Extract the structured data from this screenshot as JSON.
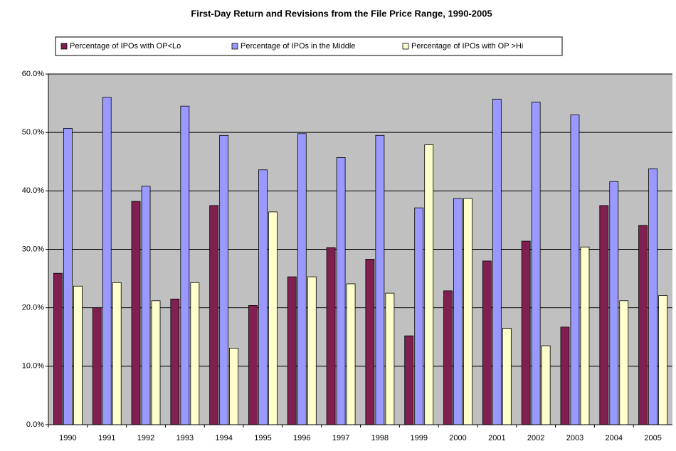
{
  "chart_data": {
    "type": "bar",
    "title": "First-Day Return and Revisions from the File Price Range, 1990-2005",
    "categories": [
      "1990",
      "1991",
      "1992",
      "1993",
      "1994",
      "1995",
      "1996",
      "1997",
      "1998",
      "1999",
      "2000",
      "2001",
      "2002",
      "2003",
      "2004",
      "2005"
    ],
    "series": [
      {
        "name": "Percentage of IPOs with OP<Lo",
        "color": "#7f2050",
        "values": [
          25.9,
          20.0,
          38.2,
          21.5,
          37.5,
          20.4,
          25.3,
          30.3,
          28.3,
          15.2,
          22.9,
          28.0,
          31.4,
          16.7,
          37.5,
          34.1
        ]
      },
      {
        "name": "Percentage of IPOs in the Middle",
        "color": "#9999ff",
        "values": [
          50.7,
          56.0,
          40.8,
          54.5,
          49.5,
          43.6,
          49.8,
          45.7,
          49.5,
          37.1,
          38.7,
          55.7,
          55.2,
          53.0,
          41.6,
          43.8
        ]
      },
      {
        "name": "Percentage of IPOs with OP >Hi",
        "color": "#ffffcc",
        "values": [
          23.7,
          24.3,
          21.2,
          24.3,
          13.1,
          36.4,
          25.3,
          24.1,
          22.5,
          47.9,
          38.7,
          16.5,
          13.5,
          30.4,
          21.2,
          22.1
        ]
      }
    ],
    "ylim": [
      0,
      60
    ],
    "yticks": [
      {
        "value": 0,
        "label": "0.0%"
      },
      {
        "value": 10,
        "label": "10.0%"
      },
      {
        "value": 20,
        "label": "20.0%"
      },
      {
        "value": 30,
        "label": "30.0%"
      },
      {
        "value": 40,
        "label": "40.0%"
      },
      {
        "value": 50,
        "label": "50.0%"
      },
      {
        "value": 60,
        "label": "60.0%"
      }
    ],
    "grid": true,
    "legend": "top"
  }
}
